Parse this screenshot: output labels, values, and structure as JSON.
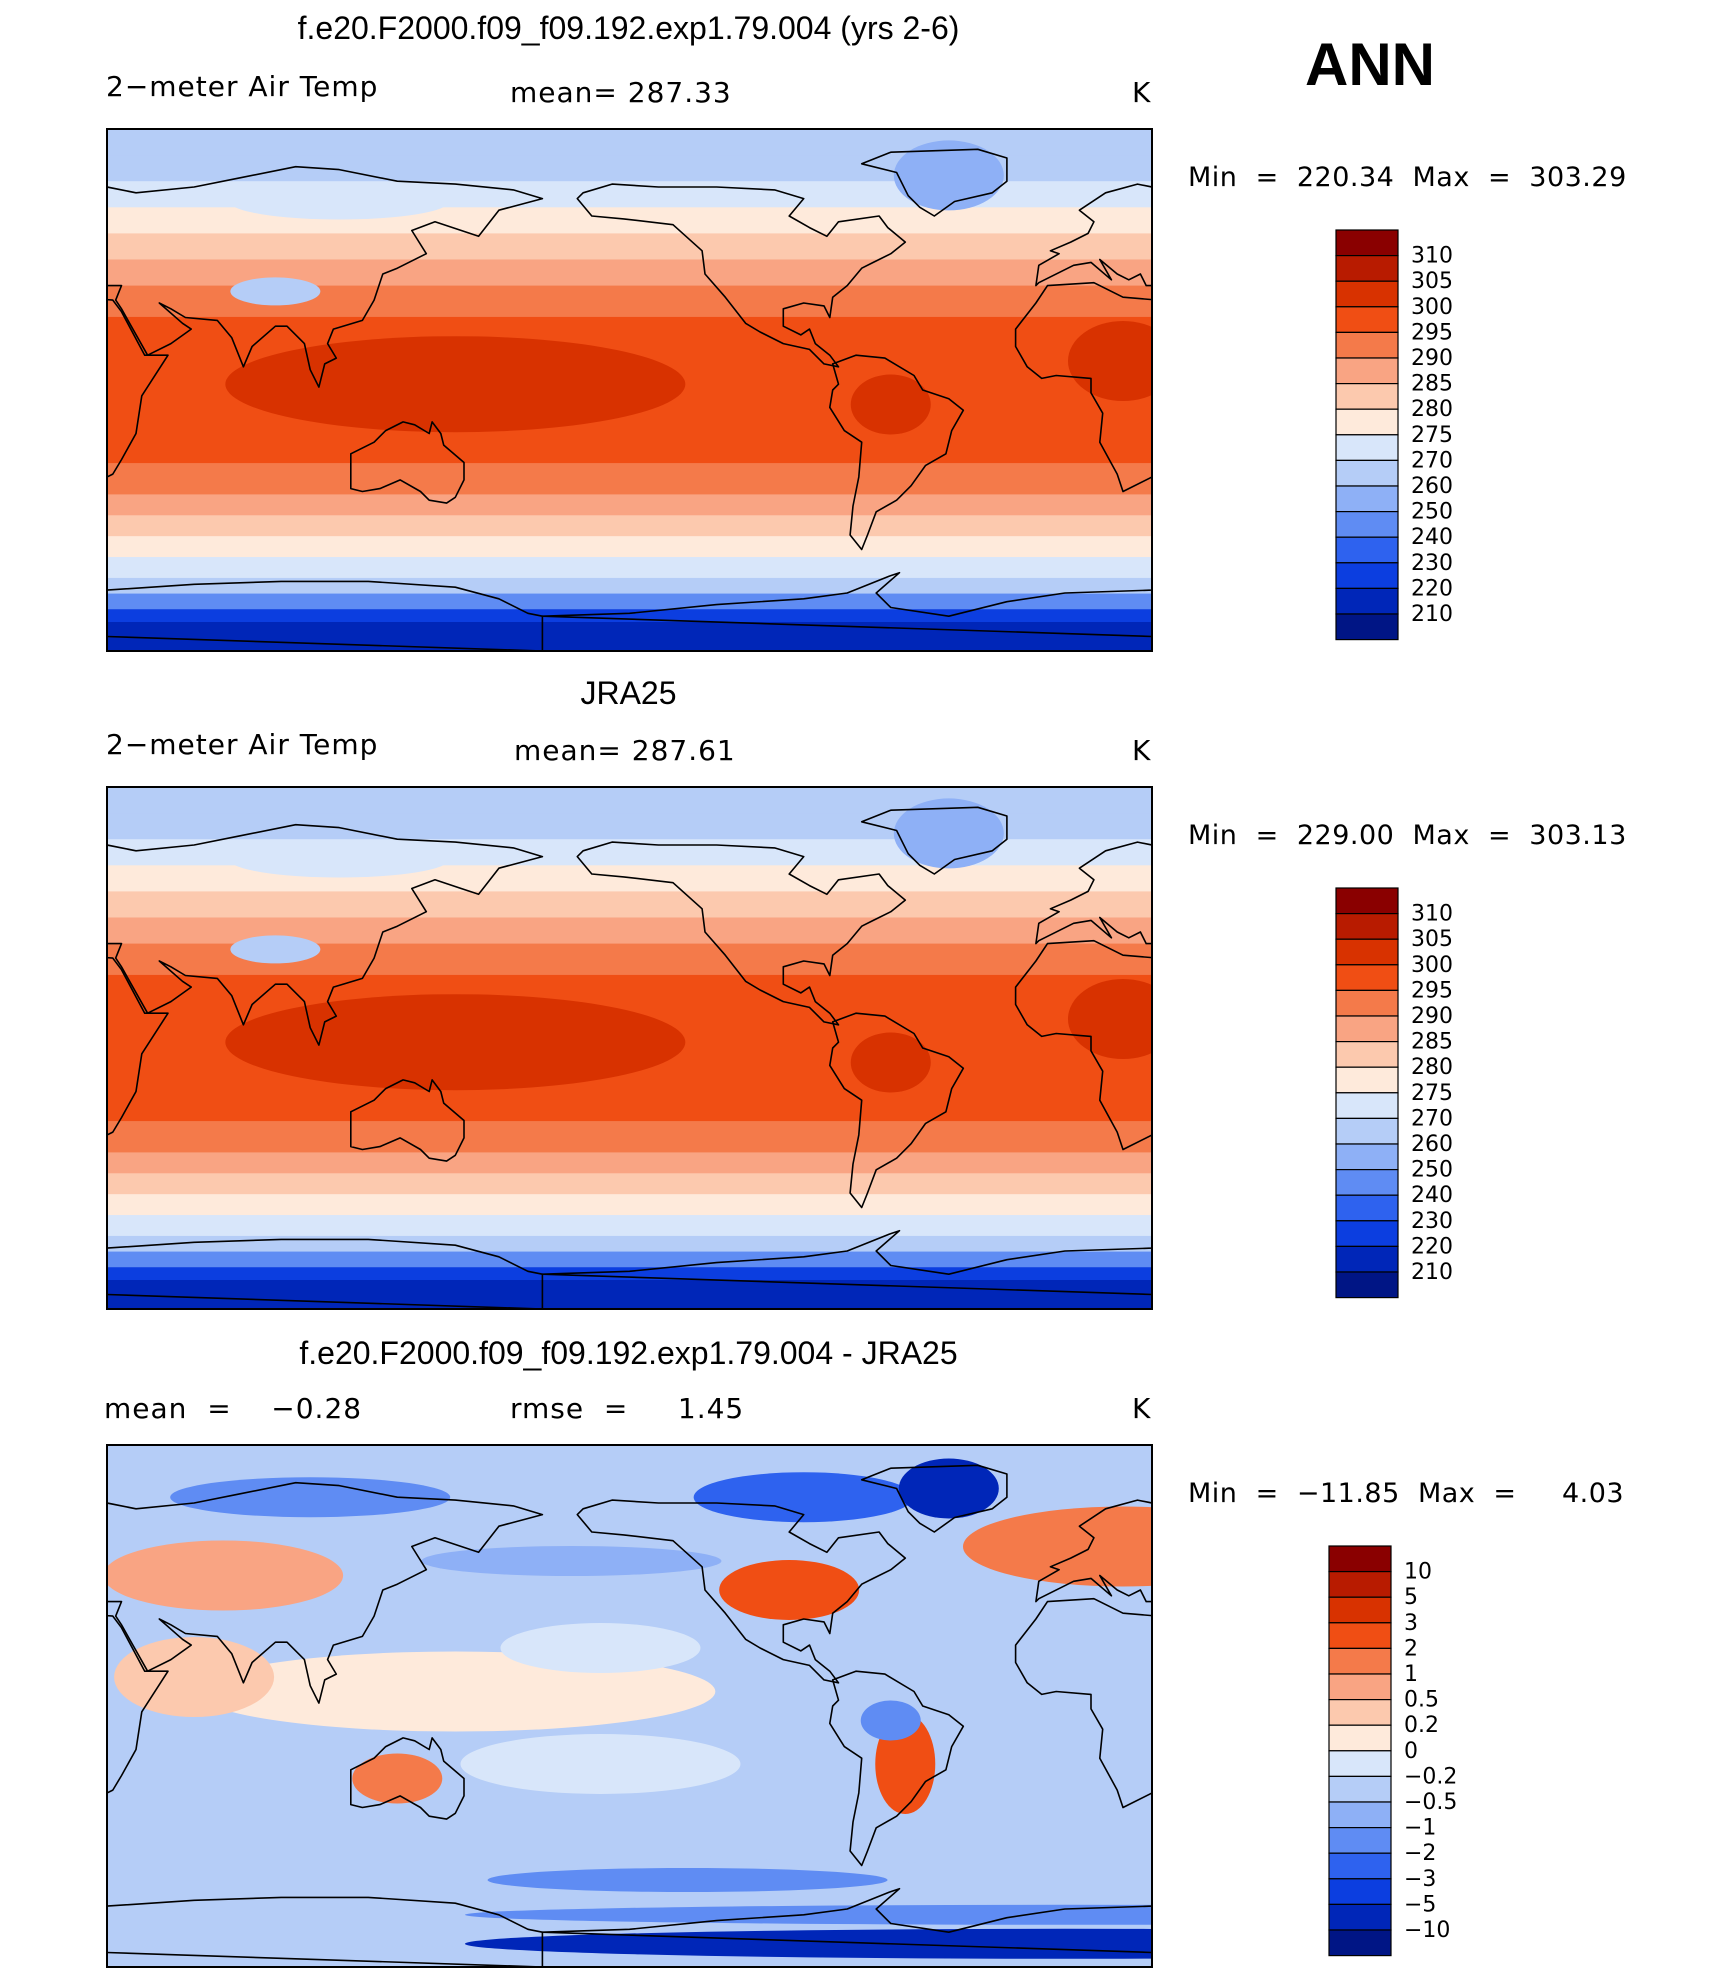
{
  "season": "ANN",
  "chart_data": [
    {
      "type": "heatmap",
      "title": "f.e20.F2000.f09_f09.192.exp1.79.004 (yrs 2-6)",
      "left_label": "2−meter Air Temp",
      "center_label": "mean=  287.33",
      "right_label": "K",
      "minmax_label": "Min  =  220.34  Max  =  303.29",
      "min": 220.34,
      "max": 303.29,
      "mean": 287.33,
      "units": "K",
      "colorbar": {
        "levels": [
          "310",
          "305",
          "300",
          "295",
          "290",
          "285",
          "280",
          "275",
          "270",
          "260",
          "250",
          "240",
          "230",
          "220",
          "210"
        ],
        "colors": [
          "#8a0000",
          "#b81b00",
          "#d83200",
          "#f04e14",
          "#f47a4a",
          "#f9a483",
          "#fcc9ae",
          "#feeadb",
          "#d8e6fa",
          "#b5cdf7",
          "#8eb0f6",
          "#5f8cf3",
          "#2e62ef",
          "#0c3ee0",
          "#0026b8",
          "#001585"
        ]
      }
    },
    {
      "type": "heatmap",
      "title": "JRA25",
      "left_label": "2−meter Air Temp",
      "center_label": "mean=  287.61",
      "right_label": "K",
      "minmax_label": "Min  =  229.00  Max  =  303.13",
      "min": 229.0,
      "max": 303.13,
      "mean": 287.61,
      "units": "K",
      "colorbar": {
        "levels": [
          "310",
          "305",
          "300",
          "295",
          "290",
          "285",
          "280",
          "275",
          "270",
          "260",
          "250",
          "240",
          "230",
          "220",
          "210"
        ],
        "colors": [
          "#8a0000",
          "#b81b00",
          "#d83200",
          "#f04e14",
          "#f47a4a",
          "#f9a483",
          "#fcc9ae",
          "#feeadb",
          "#d8e6fa",
          "#b5cdf7",
          "#8eb0f6",
          "#5f8cf3",
          "#2e62ef",
          "#0c3ee0",
          "#0026b8",
          "#001585"
        ]
      }
    },
    {
      "type": "heatmap",
      "title": "f.e20.F2000.f09_f09.192.exp1.79.004 - JRA25",
      "left_label": "mean  =    −0.28",
      "center_label": "rmse  =     1.45",
      "right_label": "K",
      "minmax_label": "Min  =  −11.85  Max  =     4.03",
      "min": -11.85,
      "max": 4.03,
      "mean": -0.28,
      "rmse": 1.45,
      "units": "K",
      "colorbar": {
        "levels": [
          "10",
          "5",
          "3",
          "2",
          "1",
          "0.5",
          "0.2",
          "0",
          "−0.2",
          "−0.5",
          "−1",
          "−2",
          "−3",
          "−5",
          "−10"
        ],
        "colors": [
          "#8a0000",
          "#b81b00",
          "#d83200",
          "#f04e14",
          "#f47a4a",
          "#f9a483",
          "#fcc9ae",
          "#feeadb",
          "#d8e6fa",
          "#b5cdf7",
          "#8eb0f6",
          "#5f8cf3",
          "#2e62ef",
          "#0c3ee0",
          "#0026b8",
          "#001585"
        ]
      }
    }
  ]
}
